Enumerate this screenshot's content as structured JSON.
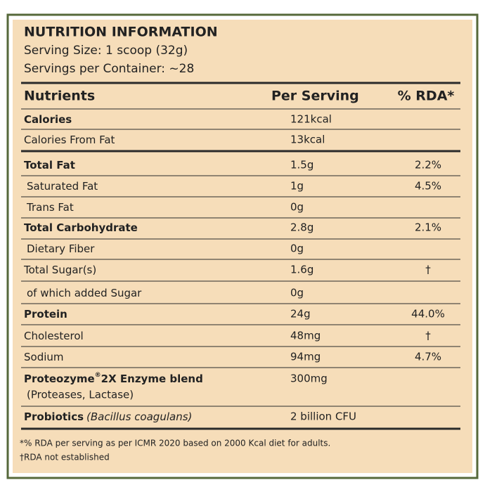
{
  "header": {
    "title": "NUTRITION INFORMATION",
    "serving_size": "Serving Size: 1 scoop (32g)",
    "servings_per_container": "Servings per Container: ~28"
  },
  "table": {
    "columns": [
      "Nutrients",
      "Per Serving",
      "% RDA*"
    ],
    "rows": [
      {
        "nutrient": "Calories",
        "per_serving": "121kcal"
      },
      {
        "nutrient": "Calories From Fat",
        "per_serving": "13kcal"
      },
      {
        "nutrient": "Total Fat",
        "per_serving": "1.5g",
        "rda": "2.2%"
      },
      {
        "nutrient": "Saturated Fat",
        "per_serving": "1g",
        "rda": "4.5%"
      },
      {
        "nutrient": "Trans Fat",
        "per_serving": "0g"
      },
      {
        "nutrient": "Total Carbohydrate",
        "per_serving": "2.8g",
        "rda": "2.1%"
      },
      {
        "nutrient": "Dietary Fiber",
        "per_serving": "0g"
      },
      {
        "nutrient": "Total Sugar(s)",
        "per_serving": "1.6g",
        "rda": "†"
      },
      {
        "nutrient": "of which added Sugar",
        "per_serving": "0g"
      },
      {
        "nutrient": "Protein",
        "per_serving": "24g",
        "rda": "44.0%"
      },
      {
        "nutrient": "Cholesterol",
        "per_serving": "48mg",
        "rda": "†"
      },
      {
        "nutrient": "Sodium",
        "per_serving": "94mg",
        "rda": "4.7%"
      },
      {
        "nutrient": "Proteozyme",
        "mark": "®",
        "nutrient_rest": "2X Enzyme blend",
        "sub": "(Proteases, Lactase)",
        "per_serving": "300mg"
      },
      {
        "nutrient": "Probiotics",
        "species": "(Bacillus coagulans)",
        "per_serving": "2 billion CFU"
      }
    ]
  },
  "footnotes": [
    "*% RDA per serving as per ICMR 2020 based on 2000 Kcal diet for adults.",
    "†RDA not established"
  ]
}
